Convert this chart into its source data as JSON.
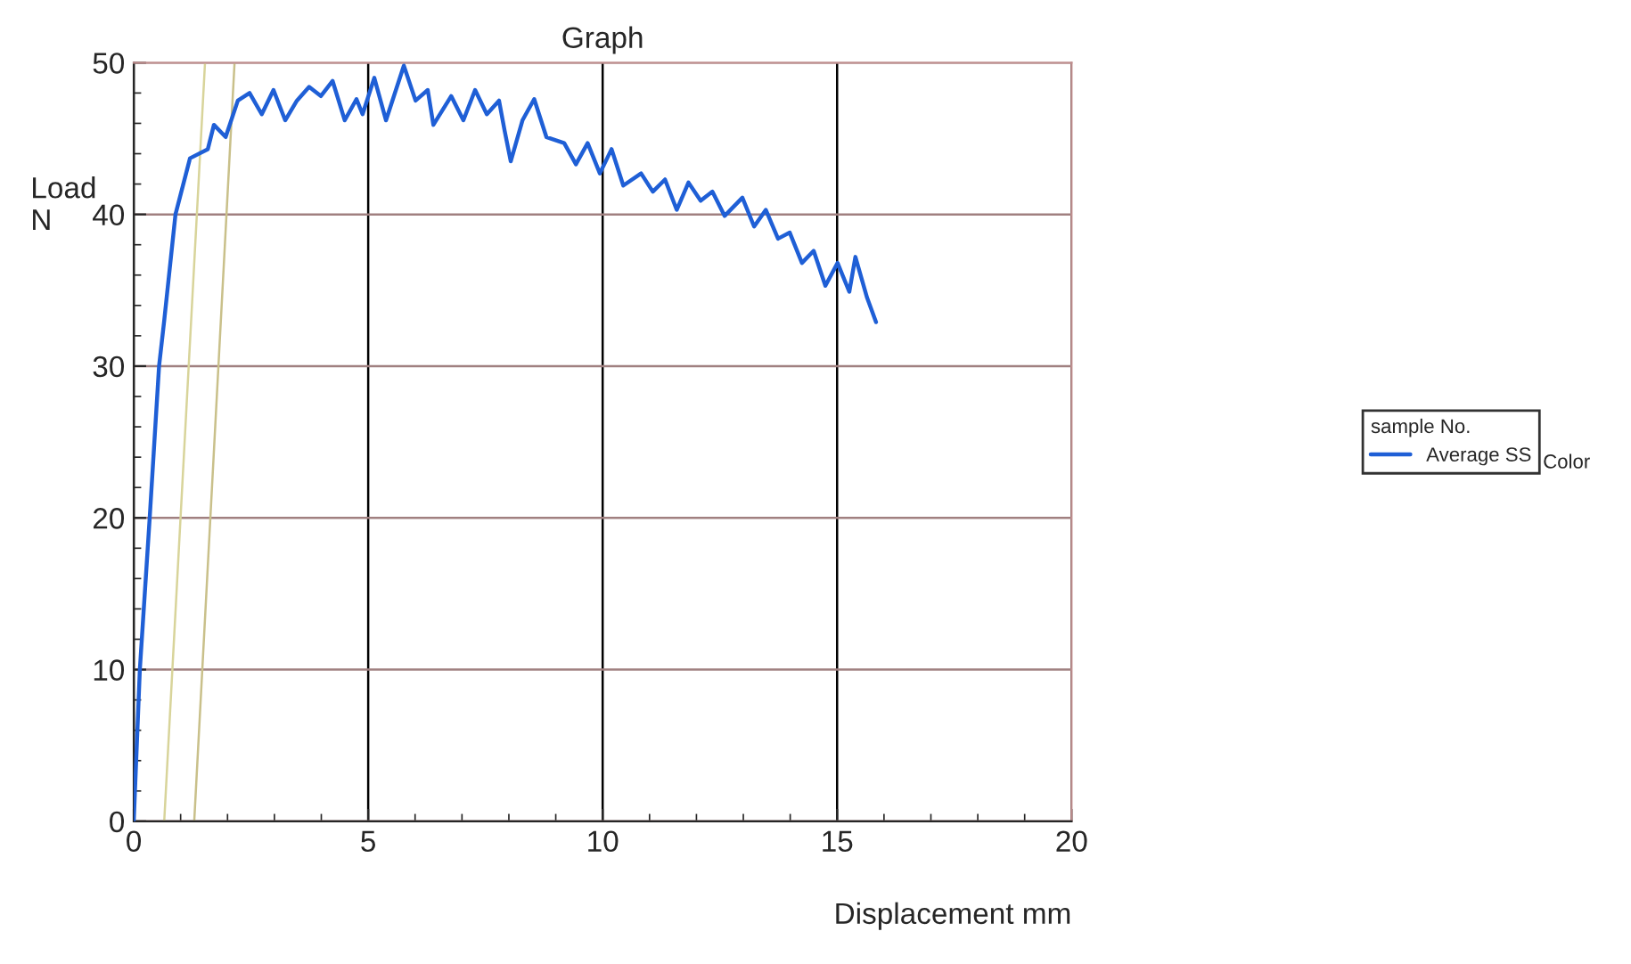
{
  "chart_data": {
    "type": "line",
    "title": "Graph",
    "xlabel": "Displacement mm",
    "ylabel": "Load\nN",
    "legend_title": "sample No.",
    "annotations": [
      "Color"
    ],
    "xlim": [
      0,
      20
    ],
    "ylim": [
      0,
      50
    ],
    "xticks": [
      0,
      5,
      10,
      15,
      20
    ],
    "yticks": [
      0,
      10,
      20,
      30,
      40,
      50
    ],
    "grid": true,
    "legend": "right",
    "series": [
      {
        "name": "Average SS",
        "color": "#1f5fd6",
        "x": [
          0,
          0.13,
          0.34,
          0.54,
          0.65,
          0.89,
          1.2,
          1.58,
          1.71,
          1.96,
          2.22,
          2.47,
          2.73,
          2.98,
          3.23,
          3.48,
          3.74,
          3.99,
          4.24,
          4.5,
          4.75,
          4.88,
          5.13,
          5.38,
          5.76,
          6.01,
          6.27,
          6.39,
          6.77,
          7.03,
          7.28,
          7.53,
          7.79,
          7.91,
          8.04,
          8.29,
          8.54,
          8.8,
          9.18,
          9.43,
          9.68,
          9.94,
          10.19,
          10.44,
          10.82,
          11.07,
          11.33,
          11.58,
          11.83,
          12.09,
          12.34,
          12.6,
          12.98,
          13.23,
          13.48,
          13.74,
          13.99,
          14.25,
          14.5,
          14.75,
          15.01,
          15.26,
          15.39,
          15.64,
          15.83
        ],
        "values": [
          0,
          10,
          20,
          30,
          33,
          40,
          43.7,
          44.3,
          45.9,
          45.1,
          47.5,
          48.0,
          46.6,
          48.2,
          46.2,
          47.5,
          48.4,
          47.8,
          48.8,
          46.2,
          47.6,
          46.6,
          49.0,
          46.2,
          49.8,
          47.5,
          48.2,
          45.9,
          47.8,
          46.2,
          48.2,
          46.6,
          47.5,
          45.5,
          43.5,
          46.2,
          47.6,
          45.1,
          44.7,
          43.3,
          44.7,
          42.7,
          44.3,
          41.9,
          42.7,
          41.5,
          42.3,
          40.3,
          42.1,
          40.9,
          41.5,
          39.9,
          41.1,
          39.2,
          40.3,
          38.4,
          38.8,
          36.8,
          37.6,
          35.3,
          36.8,
          34.9,
          37.2,
          34.5,
          32.9
        ]
      },
      {
        "color": "#d8d49a",
        "x": [
          0.65,
          1.52
        ],
        "values": [
          0,
          50
        ]
      },
      {
        "color": "#c9c08a",
        "x": [
          1.29,
          2.15
        ],
        "values": [
          0,
          50
        ]
      }
    ]
  }
}
